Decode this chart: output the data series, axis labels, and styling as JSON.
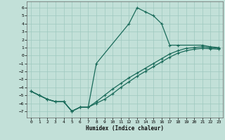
{
  "xlabel": "Humidex (Indice chaleur)",
  "xlim": [
    -0.5,
    23.5
  ],
  "ylim": [
    -7.8,
    6.8
  ],
  "xticks": [
    0,
    1,
    2,
    3,
    4,
    5,
    6,
    7,
    8,
    9,
    10,
    11,
    12,
    13,
    14,
    15,
    16,
    17,
    18,
    19,
    20,
    21,
    22,
    23
  ],
  "yticks": [
    -7,
    -6,
    -5,
    -4,
    -3,
    -2,
    -1,
    0,
    1,
    2,
    3,
    4,
    5,
    6
  ],
  "bg_color": "#c2e0d8",
  "grid_color": "#9ec8bf",
  "line_color": "#1a6b5a",
  "series_peak": {
    "x": [
      0,
      1,
      2,
      3,
      4,
      5,
      6,
      7,
      8,
      12,
      13,
      14,
      15,
      16,
      17,
      18,
      21,
      22,
      23
    ],
    "y": [
      -4.5,
      -5.0,
      -5.5,
      -5.8,
      -5.8,
      -7.0,
      -6.5,
      -6.5,
      -1.0,
      4.0,
      6.0,
      5.5,
      5.0,
      4.0,
      1.3,
      1.3,
      1.3,
      1.1,
      1.0
    ]
  },
  "series_linear1": {
    "x": [
      0,
      1,
      2,
      3,
      4,
      5,
      6,
      7,
      8,
      9,
      10,
      11,
      12,
      13,
      14,
      15,
      16,
      17,
      18,
      19,
      20,
      21,
      22,
      23
    ],
    "y": [
      -4.5,
      -5.0,
      -5.5,
      -5.8,
      -5.8,
      -7.0,
      -6.5,
      -6.5,
      -5.8,
      -5.0,
      -4.2,
      -3.5,
      -2.8,
      -2.2,
      -1.6,
      -1.0,
      -0.4,
      0.2,
      0.6,
      0.9,
      1.0,
      1.1,
      1.0,
      0.9
    ]
  },
  "series_linear2": {
    "x": [
      0,
      1,
      2,
      3,
      4,
      5,
      6,
      7,
      8,
      9,
      10,
      11,
      12,
      13,
      14,
      15,
      16,
      17,
      18,
      19,
      20,
      21,
      22,
      23
    ],
    "y": [
      -4.5,
      -5.0,
      -5.5,
      -5.8,
      -5.8,
      -7.0,
      -6.5,
      -6.5,
      -6.0,
      -5.5,
      -4.8,
      -4.0,
      -3.3,
      -2.6,
      -2.0,
      -1.4,
      -0.8,
      -0.2,
      0.3,
      0.6,
      0.8,
      0.9,
      0.85,
      0.8
    ]
  }
}
